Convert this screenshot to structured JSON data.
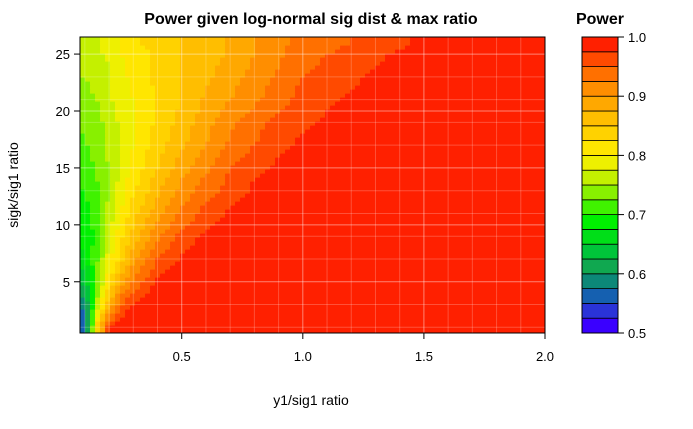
{
  "chart_data": {
    "type": "heatmap",
    "title": "Power given log-normal sig dist & max ratio",
    "xlabel": "y1/sig1 ratio",
    "ylabel": "sigk/sig1 ratio",
    "xlim": [
      0.08,
      2.0
    ],
    "ylim": [
      0.5,
      26.5
    ],
    "xticks": [
      0.5,
      1.0,
      1.5,
      2.0
    ],
    "xtick_labels": [
      "0.5",
      "1.0",
      "1.5",
      "2.0"
    ],
    "yticks": [
      5,
      10,
      15,
      20,
      25
    ],
    "ytick_labels": [
      "5",
      "10",
      "15",
      "20",
      "25"
    ],
    "grid": true,
    "x": [
      0.1,
      0.15,
      0.2,
      0.25,
      0.3,
      0.4,
      0.5,
      0.6,
      0.7,
      0.8,
      0.9,
      1.0,
      1.1,
      1.2,
      1.3,
      1.4,
      1.5,
      1.6,
      1.7,
      1.8,
      1.9,
      2.0
    ],
    "y": [
      1,
      3,
      5,
      7,
      9,
      11,
      13,
      15,
      17,
      19,
      21,
      23,
      25,
      26
    ],
    "z": [
      [
        0.55,
        0.84,
        0.97,
        1.0,
        1.0,
        1.0,
        1.0,
        1.0,
        1.0,
        1.0,
        1.0,
        1.0,
        1.0,
        1.0,
        1.0,
        1.0,
        1.0,
        1.0,
        1.0,
        1.0,
        1.0,
        1.0
      ],
      [
        0.58,
        0.75,
        0.88,
        0.95,
        0.98,
        1.0,
        1.0,
        1.0,
        1.0,
        1.0,
        1.0,
        1.0,
        1.0,
        1.0,
        1.0,
        1.0,
        1.0,
        1.0,
        1.0,
        1.0,
        1.0,
        1.0
      ],
      [
        0.63,
        0.73,
        0.82,
        0.89,
        0.93,
        0.98,
        1.0,
        1.0,
        1.0,
        1.0,
        1.0,
        1.0,
        1.0,
        1.0,
        1.0,
        1.0,
        1.0,
        1.0,
        1.0,
        1.0,
        1.0,
        1.0
      ],
      [
        0.67,
        0.72,
        0.79,
        0.84,
        0.89,
        0.95,
        0.98,
        1.0,
        1.0,
        1.0,
        1.0,
        1.0,
        1.0,
        1.0,
        1.0,
        1.0,
        1.0,
        1.0,
        1.0,
        1.0,
        1.0,
        1.0
      ],
      [
        0.68,
        0.71,
        0.77,
        0.82,
        0.86,
        0.92,
        0.96,
        0.98,
        0.99,
        1.0,
        1.0,
        1.0,
        1.0,
        1.0,
        1.0,
        1.0,
        1.0,
        1.0,
        1.0,
        1.0,
        1.0,
        1.0
      ],
      [
        0.69,
        0.71,
        0.76,
        0.8,
        0.84,
        0.89,
        0.93,
        0.96,
        0.98,
        0.99,
        1.0,
        1.0,
        1.0,
        1.0,
        1.0,
        1.0,
        1.0,
        1.0,
        1.0,
        1.0,
        1.0,
        1.0
      ],
      [
        0.7,
        0.72,
        0.75,
        0.79,
        0.82,
        0.87,
        0.91,
        0.94,
        0.96,
        0.98,
        0.99,
        1.0,
        1.0,
        1.0,
        1.0,
        1.0,
        1.0,
        1.0,
        1.0,
        1.0,
        1.0,
        1.0
      ],
      [
        0.71,
        0.73,
        0.75,
        0.78,
        0.81,
        0.85,
        0.89,
        0.92,
        0.95,
        0.97,
        0.98,
        0.99,
        1.0,
        1.0,
        1.0,
        1.0,
        1.0,
        1.0,
        1.0,
        1.0,
        1.0,
        1.0
      ],
      [
        0.72,
        0.74,
        0.76,
        0.78,
        0.8,
        0.84,
        0.87,
        0.9,
        0.93,
        0.95,
        0.97,
        0.98,
        0.99,
        0.99,
        1.0,
        1.0,
        1.0,
        1.0,
        1.0,
        1.0,
        1.0,
        1.0
      ],
      [
        0.73,
        0.74,
        0.76,
        0.78,
        0.8,
        0.83,
        0.86,
        0.89,
        0.92,
        0.94,
        0.96,
        0.97,
        0.98,
        0.99,
        0.99,
        1.0,
        1.0,
        1.0,
        1.0,
        1.0,
        1.0,
        1.0
      ],
      [
        0.74,
        0.75,
        0.77,
        0.79,
        0.8,
        0.83,
        0.85,
        0.88,
        0.9,
        0.92,
        0.94,
        0.96,
        0.97,
        0.98,
        0.98,
        0.99,
        0.99,
        1.0,
        1.0,
        1.0,
        1.0,
        1.0
      ],
      [
        0.75,
        0.76,
        0.77,
        0.79,
        0.81,
        0.83,
        0.85,
        0.87,
        0.89,
        0.91,
        0.93,
        0.95,
        0.96,
        0.97,
        0.98,
        0.98,
        0.99,
        0.99,
        1.0,
        1.0,
        1.0,
        1.0
      ],
      [
        0.75,
        0.77,
        0.78,
        0.8,
        0.81,
        0.83,
        0.85,
        0.86,
        0.88,
        0.9,
        0.92,
        0.94,
        0.95,
        0.96,
        0.97,
        0.98,
        0.98,
        0.99,
        0.99,
        1.0,
        1.0,
        1.0
      ],
      [
        0.76,
        0.77,
        0.79,
        0.8,
        0.82,
        0.84,
        0.85,
        0.86,
        0.88,
        0.9,
        0.92,
        0.93,
        0.94,
        0.95,
        0.96,
        0.97,
        0.98,
        0.98,
        0.99,
        0.99,
        1.0,
        1.0
      ]
    ],
    "legend": {
      "title": "Power",
      "placement": "right",
      "range": [
        0.5,
        1.0
      ],
      "levels": [
        0.5,
        0.525,
        0.55,
        0.575,
        0.6,
        0.625,
        0.65,
        0.675,
        0.7,
        0.725,
        0.75,
        0.775,
        0.8,
        0.825,
        0.85,
        0.875,
        0.9,
        0.925,
        0.95,
        0.975,
        1.0
      ],
      "ticks": [
        0.5,
        0.6,
        0.7,
        0.8,
        0.9,
        1.0
      ],
      "tick_labels": [
        "0.5",
        "0.6",
        "0.7",
        "0.8",
        "0.9",
        "1.0"
      ],
      "colors": [
        "#3a00ff",
        "#2a33d8",
        "#1560b0",
        "#0c8878",
        "#10a850",
        "#00c43a",
        "#00de18",
        "#00f000",
        "#40f200",
        "#88f000",
        "#c4f000",
        "#eef000",
        "#ffe600",
        "#ffd200",
        "#ffbe00",
        "#ffa800",
        "#ff8e00",
        "#ff7000",
        "#ff4a00",
        "#ff2000"
      ]
    }
  }
}
